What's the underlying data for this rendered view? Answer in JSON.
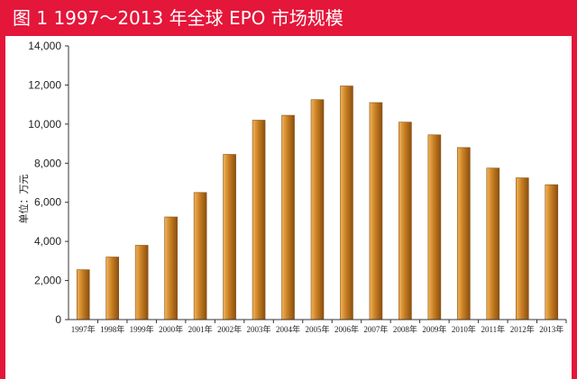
{
  "title": "图 1  1997～2013 年全球 EPO 市场规模",
  "colors": {
    "frame": "#e4163a",
    "bar_light": "#f1b35a",
    "bar_mid": "#c87f22",
    "bar_dark": "#8a4f10",
    "axis": "#333333"
  },
  "chart_data": {
    "type": "bar",
    "ylabel": "单位：万元",
    "xlabel": "",
    "ylim": [
      0,
      14000
    ],
    "ytick_step": 2000,
    "ytick_labels": [
      "0",
      "2,000",
      "4,000",
      "6,000",
      "8,000",
      "10,000",
      "12,000",
      "14,000"
    ],
    "grid": false,
    "categories": [
      "1997年",
      "1998年",
      "1999年",
      "2000年",
      "2001年",
      "2002年",
      "2003年",
      "2004年",
      "2005年",
      "2006年",
      "2007年",
      "2008年",
      "2009年",
      "2010年",
      "2011年",
      "2012年",
      "2013年"
    ],
    "values": [
      2550,
      3200,
      3800,
      5250,
      6500,
      8450,
      10200,
      10450,
      11250,
      11950,
      11100,
      10100,
      9450,
      8800,
      7750,
      7250,
      6900
    ]
  }
}
